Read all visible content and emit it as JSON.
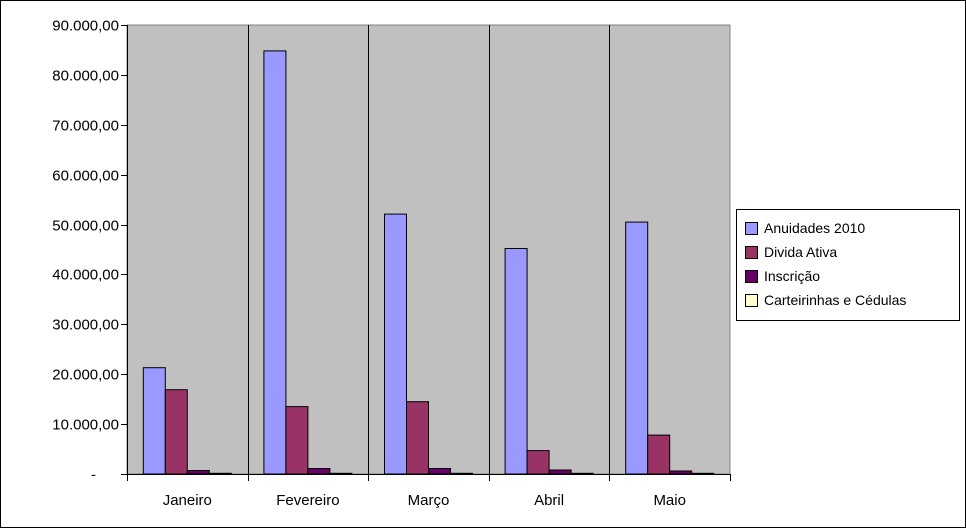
{
  "chart_data": {
    "type": "bar",
    "title": "",
    "xlabel": "",
    "ylabel": "",
    "categories": [
      "Janeiro",
      "Fevereiro",
      "Março",
      "Abril",
      "Maio"
    ],
    "ylim": [
      0,
      90000
    ],
    "y_ticks": [
      0,
      10000,
      20000,
      30000,
      40000,
      50000,
      60000,
      70000,
      80000,
      90000
    ],
    "y_tick_labels": [
      "-",
      "10.000,00",
      "20.000,00",
      "30.000,00",
      "40.000,00",
      "50.000,00",
      "60.000,00",
      "70.000,00",
      "80.000,00",
      "90.000,00"
    ],
    "grid": "vertical category lines",
    "plot_background": "#c0c0c0",
    "legend_position": "right",
    "series": [
      {
        "name": "Anuidades 2010",
        "color": "#9999ff",
        "values": [
          21300,
          84800,
          52100,
          45200,
          50500
        ]
      },
      {
        "name": "Divida Ativa",
        "color": "#993366",
        "values": [
          16900,
          13500,
          14500,
          4700,
          7800
        ]
      },
      {
        "name": "Inscrição",
        "color": "#660066",
        "values": [
          700,
          1100,
          1100,
          800,
          600
        ]
      },
      {
        "name": "Carteirinhas e Cédulas",
        "color": "#ffffcc",
        "values": [
          150,
          150,
          150,
          150,
          150
        ]
      }
    ]
  }
}
